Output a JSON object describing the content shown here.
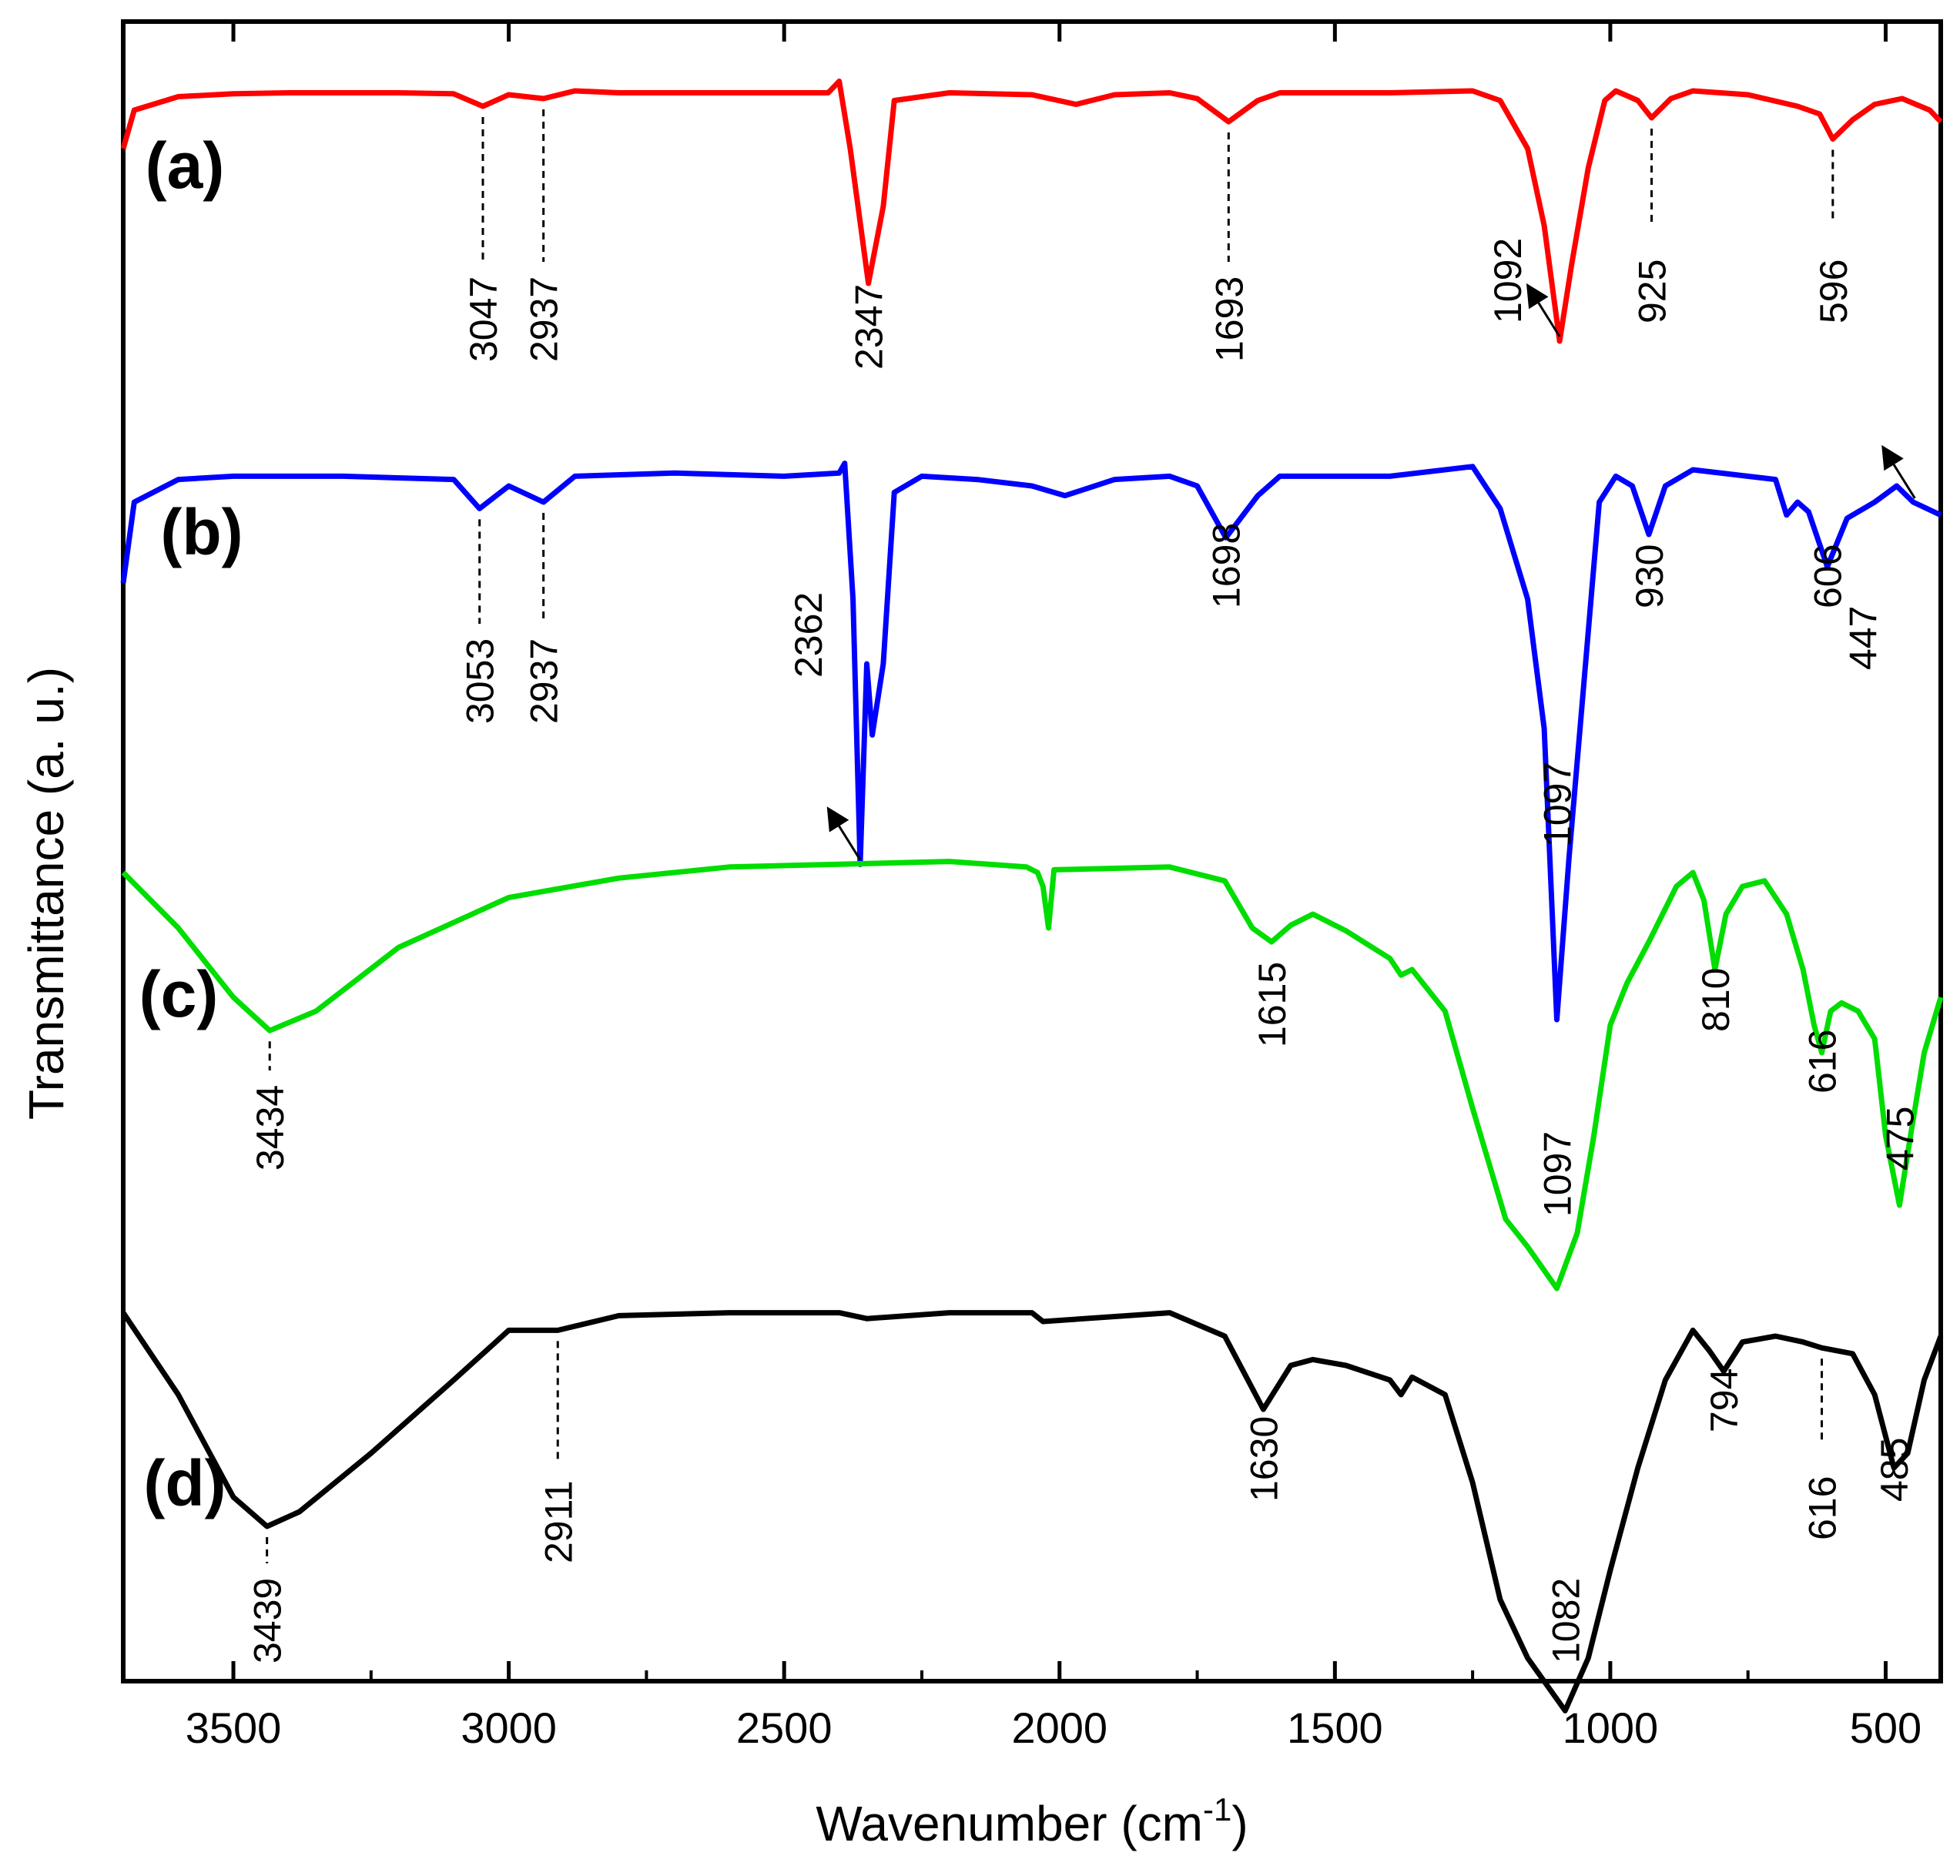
{
  "chart_data": {
    "type": "line",
    "title": "",
    "xlabel": "Wavenumber (cm",
    "xlabel_sup": "-1",
    "xlabel_close": ")",
    "ylabel": "Transmittance (a. u.)",
    "xlim": [
      3700,
      400
    ],
    "x_reversed": true,
    "x_ticks": [
      3500,
      3000,
      2500,
      2000,
      1500,
      1000,
      500
    ],
    "x_tick_labels": [
      "3500",
      "3000",
      "2500",
      "2000",
      "1500",
      "1000",
      "500"
    ],
    "y_ticks_shown": false,
    "grid": false,
    "series": [
      {
        "name": "(a)",
        "color": "#ff0000",
        "points": [
          [
            3700,
            0.7
          ],
          [
            3680,
            0.9
          ],
          [
            3600,
            0.97
          ],
          [
            3500,
            0.985
          ],
          [
            3400,
            0.99
          ],
          [
            3200,
            0.99
          ],
          [
            3100,
            0.985
          ],
          [
            3047,
            0.92
          ],
          [
            3000,
            0.98
          ],
          [
            2937,
            0.96
          ],
          [
            2880,
            1.0
          ],
          [
            2800,
            0.99
          ],
          [
            2600,
            0.99
          ],
          [
            2420,
            0.99
          ],
          [
            2400,
            1.05
          ],
          [
            2380,
            0.7
          ],
          [
            2347,
            0.0
          ],
          [
            2320,
            0.4
          ],
          [
            2300,
            0.95
          ],
          [
            2200,
            0.99
          ],
          [
            2050,
            0.98
          ],
          [
            1970,
            0.93
          ],
          [
            1900,
            0.98
          ],
          [
            1800,
            0.99
          ],
          [
            1750,
            0.96
          ],
          [
            1693,
            0.84
          ],
          [
            1640,
            0.95
          ],
          [
            1600,
            0.99
          ],
          [
            1400,
            0.99
          ],
          [
            1250,
            1.0
          ],
          [
            1200,
            0.95
          ],
          [
            1150,
            0.7
          ],
          [
            1120,
            0.3
          ],
          [
            1092,
            -0.3
          ],
          [
            1070,
            0.1
          ],
          [
            1040,
            0.6
          ],
          [
            1010,
            0.95
          ],
          [
            990,
            1.0
          ],
          [
            950,
            0.95
          ],
          [
            925,
            0.86
          ],
          [
            890,
            0.96
          ],
          [
            850,
            1.0
          ],
          [
            750,
            0.98
          ],
          [
            660,
            0.92
          ],
          [
            620,
            0.88
          ],
          [
            596,
            0.75
          ],
          [
            560,
            0.85
          ],
          [
            520,
            0.93
          ],
          [
            470,
            0.96
          ],
          [
            420,
            0.9
          ],
          [
            400,
            0.84
          ]
        ],
        "peaks": [
          {
            "label": "3047",
            "x": 3047,
            "style": "dashed"
          },
          {
            "label": "2937",
            "x": 2937,
            "style": "dashed"
          },
          {
            "label": "2347",
            "x": 2347,
            "style": "none"
          },
          {
            "label": "1693",
            "x": 1693,
            "style": "dashed"
          },
          {
            "label": "1092",
            "x": 1092,
            "style": "arrow"
          },
          {
            "label": "925",
            "x": 925,
            "style": "dashed"
          },
          {
            "label": "596",
            "x": 596,
            "style": "dashed"
          }
        ]
      },
      {
        "name": "(b)",
        "color": "#0000ff",
        "points": [
          [
            3700,
            0.65
          ],
          [
            3680,
            0.9
          ],
          [
            3600,
            0.97
          ],
          [
            3500,
            0.98
          ],
          [
            3300,
            0.98
          ],
          [
            3100,
            0.97
          ],
          [
            3053,
            0.88
          ],
          [
            3000,
            0.95
          ],
          [
            2937,
            0.9
          ],
          [
            2880,
            0.98
          ],
          [
            2700,
            0.99
          ],
          [
            2500,
            0.98
          ],
          [
            2400,
            0.99
          ],
          [
            2390,
            1.02
          ],
          [
            2375,
            0.6
          ],
          [
            2362,
            -0.22
          ],
          [
            2350,
            0.4
          ],
          [
            2340,
            0.18
          ],
          [
            2320,
            0.4
          ],
          [
            2300,
            0.93
          ],
          [
            2250,
            0.98
          ],
          [
            2150,
            0.97
          ],
          [
            2050,
            0.95
          ],
          [
            1990,
            0.92
          ],
          [
            1900,
            0.97
          ],
          [
            1800,
            0.98
          ],
          [
            1750,
            0.95
          ],
          [
            1698,
            0.79
          ],
          [
            1640,
            0.92
          ],
          [
            1600,
            0.98
          ],
          [
            1400,
            0.98
          ],
          [
            1250,
            1.01
          ],
          [
            1200,
            0.88
          ],
          [
            1150,
            0.6
          ],
          [
            1120,
            0.2
          ],
          [
            1097,
            -0.7
          ],
          [
            1075,
            -0.2
          ],
          [
            1050,
            0.3
          ],
          [
            1020,
            0.9
          ],
          [
            990,
            0.98
          ],
          [
            960,
            0.95
          ],
          [
            930,
            0.8
          ],
          [
            900,
            0.95
          ],
          [
            850,
            1.0
          ],
          [
            700,
            0.97
          ],
          [
            680,
            0.86
          ],
          [
            660,
            0.9
          ],
          [
            640,
            0.87
          ],
          [
            606,
            0.7
          ],
          [
            570,
            0.85
          ],
          [
            520,
            0.9
          ],
          [
            480,
            0.95
          ],
          [
            450,
            0.9
          ],
          [
            400,
            0.86
          ]
        ],
        "peaks": [
          {
            "label": "3053",
            "x": 3053,
            "style": "dashed"
          },
          {
            "label": "2937",
            "x": 2937,
            "style": "dashed"
          },
          {
            "label": "2362",
            "x": 2362,
            "style": "arrow"
          },
          {
            "label": "1698",
            "x": 1698,
            "style": "none"
          },
          {
            "label": "1097",
            "x": 1097,
            "style": "none"
          },
          {
            "label": "930",
            "x": 930,
            "style": "none"
          },
          {
            "label": "606",
            "x": 606,
            "style": "none"
          },
          {
            "label": "447",
            "x": 447,
            "style": "arrow"
          }
        ]
      },
      {
        "name": "(c)",
        "color": "#00dd00",
        "points": [
          [
            3700,
            0.95
          ],
          [
            3600,
            0.75
          ],
          [
            3500,
            0.5
          ],
          [
            3434,
            0.38
          ],
          [
            3350,
            0.45
          ],
          [
            3200,
            0.68
          ],
          [
            3000,
            0.86
          ],
          [
            2800,
            0.93
          ],
          [
            2600,
            0.97
          ],
          [
            2400,
            0.98
          ],
          [
            2200,
            0.99
          ],
          [
            2060,
            0.97
          ],
          [
            2040,
            0.95
          ],
          [
            2030,
            0.9
          ],
          [
            2020,
            0.75
          ],
          [
            2010,
            0.96
          ],
          [
            1800,
            0.97
          ],
          [
            1700,
            0.92
          ],
          [
            1650,
            0.75
          ],
          [
            1615,
            0.7
          ],
          [
            1580,
            0.76
          ],
          [
            1540,
            0.8
          ],
          [
            1480,
            0.74
          ],
          [
            1400,
            0.64
          ],
          [
            1380,
            0.58
          ],
          [
            1360,
            0.6
          ],
          [
            1300,
            0.45
          ],
          [
            1250,
            0.1
          ],
          [
            1190,
            -0.3
          ],
          [
            1150,
            -0.4
          ],
          [
            1097,
            -0.55
          ],
          [
            1060,
            -0.35
          ],
          [
            1030,
            0.0
          ],
          [
            1000,
            0.4
          ],
          [
            970,
            0.55
          ],
          [
            930,
            0.7
          ],
          [
            880,
            0.9
          ],
          [
            850,
            0.95
          ],
          [
            830,
            0.85
          ],
          [
            810,
            0.6
          ],
          [
            790,
            0.8
          ],
          [
            760,
            0.9
          ],
          [
            720,
            0.92
          ],
          [
            680,
            0.8
          ],
          [
            650,
            0.6
          ],
          [
            630,
            0.4
          ],
          [
            616,
            0.3
          ],
          [
            600,
            0.45
          ],
          [
            580,
            0.48
          ],
          [
            550,
            0.45
          ],
          [
            520,
            0.35
          ],
          [
            500,
            0.0
          ],
          [
            475,
            -0.25
          ],
          [
            455,
            0.0
          ],
          [
            430,
            0.3
          ],
          [
            400,
            0.5
          ]
        ],
        "peaks": [
          {
            "label": "3434",
            "x": 3434,
            "style": "dashed"
          },
          {
            "label": "1615",
            "x": 1615,
            "style": "none"
          },
          {
            "label": "1097",
            "x": 1097,
            "style": "none"
          },
          {
            "label": "810",
            "x": 810,
            "style": "none"
          },
          {
            "label": "616",
            "x": 616,
            "style": "none"
          },
          {
            "label": "475",
            "x": 475,
            "style": "none"
          }
        ]
      },
      {
        "name": "(d)",
        "color": "#000000",
        "points": [
          [
            3700,
            0.98
          ],
          [
            3600,
            0.7
          ],
          [
            3500,
            0.35
          ],
          [
            3439,
            0.25
          ],
          [
            3380,
            0.3
          ],
          [
            3250,
            0.5
          ],
          [
            3100,
            0.75
          ],
          [
            3000,
            0.92
          ],
          [
            2911,
            0.92
          ],
          [
            2800,
            0.97
          ],
          [
            2600,
            0.98
          ],
          [
            2400,
            0.98
          ],
          [
            2350,
            0.96
          ],
          [
            2200,
            0.98
          ],
          [
            2050,
            0.98
          ],
          [
            2030,
            0.95
          ],
          [
            1800,
            0.98
          ],
          [
            1700,
            0.9
          ],
          [
            1630,
            0.65
          ],
          [
            1580,
            0.8
          ],
          [
            1540,
            0.82
          ],
          [
            1480,
            0.8
          ],
          [
            1400,
            0.75
          ],
          [
            1380,
            0.7
          ],
          [
            1360,
            0.76
          ],
          [
            1300,
            0.7
          ],
          [
            1250,
            0.4
          ],
          [
            1200,
            0.0
          ],
          [
            1150,
            -0.2
          ],
          [
            1082,
            -0.38
          ],
          [
            1040,
            -0.2
          ],
          [
            1000,
            0.1
          ],
          [
            950,
            0.45
          ],
          [
            900,
            0.75
          ],
          [
            850,
            0.92
          ],
          [
            820,
            0.85
          ],
          [
            794,
            0.78
          ],
          [
            760,
            0.88
          ],
          [
            700,
            0.9
          ],
          [
            650,
            0.88
          ],
          [
            616,
            0.86
          ],
          [
            560,
            0.84
          ],
          [
            520,
            0.7
          ],
          [
            485,
            0.45
          ],
          [
            460,
            0.5
          ],
          [
            430,
            0.75
          ],
          [
            400,
            0.9
          ]
        ],
        "peaks": [
          {
            "label": "3439",
            "x": 3439,
            "style": "dashed"
          },
          {
            "label": "2911",
            "x": 2911,
            "style": "dashed"
          },
          {
            "label": "1630",
            "x": 1630,
            "style": "none"
          },
          {
            "label": "1082",
            "x": 1082,
            "style": "none"
          },
          {
            "label": "794",
            "x": 794,
            "style": "none"
          },
          {
            "label": "616",
            "x": 616,
            "style": "dashed"
          },
          {
            "label": "485",
            "x": 485,
            "style": "none"
          }
        ]
      }
    ]
  }
}
